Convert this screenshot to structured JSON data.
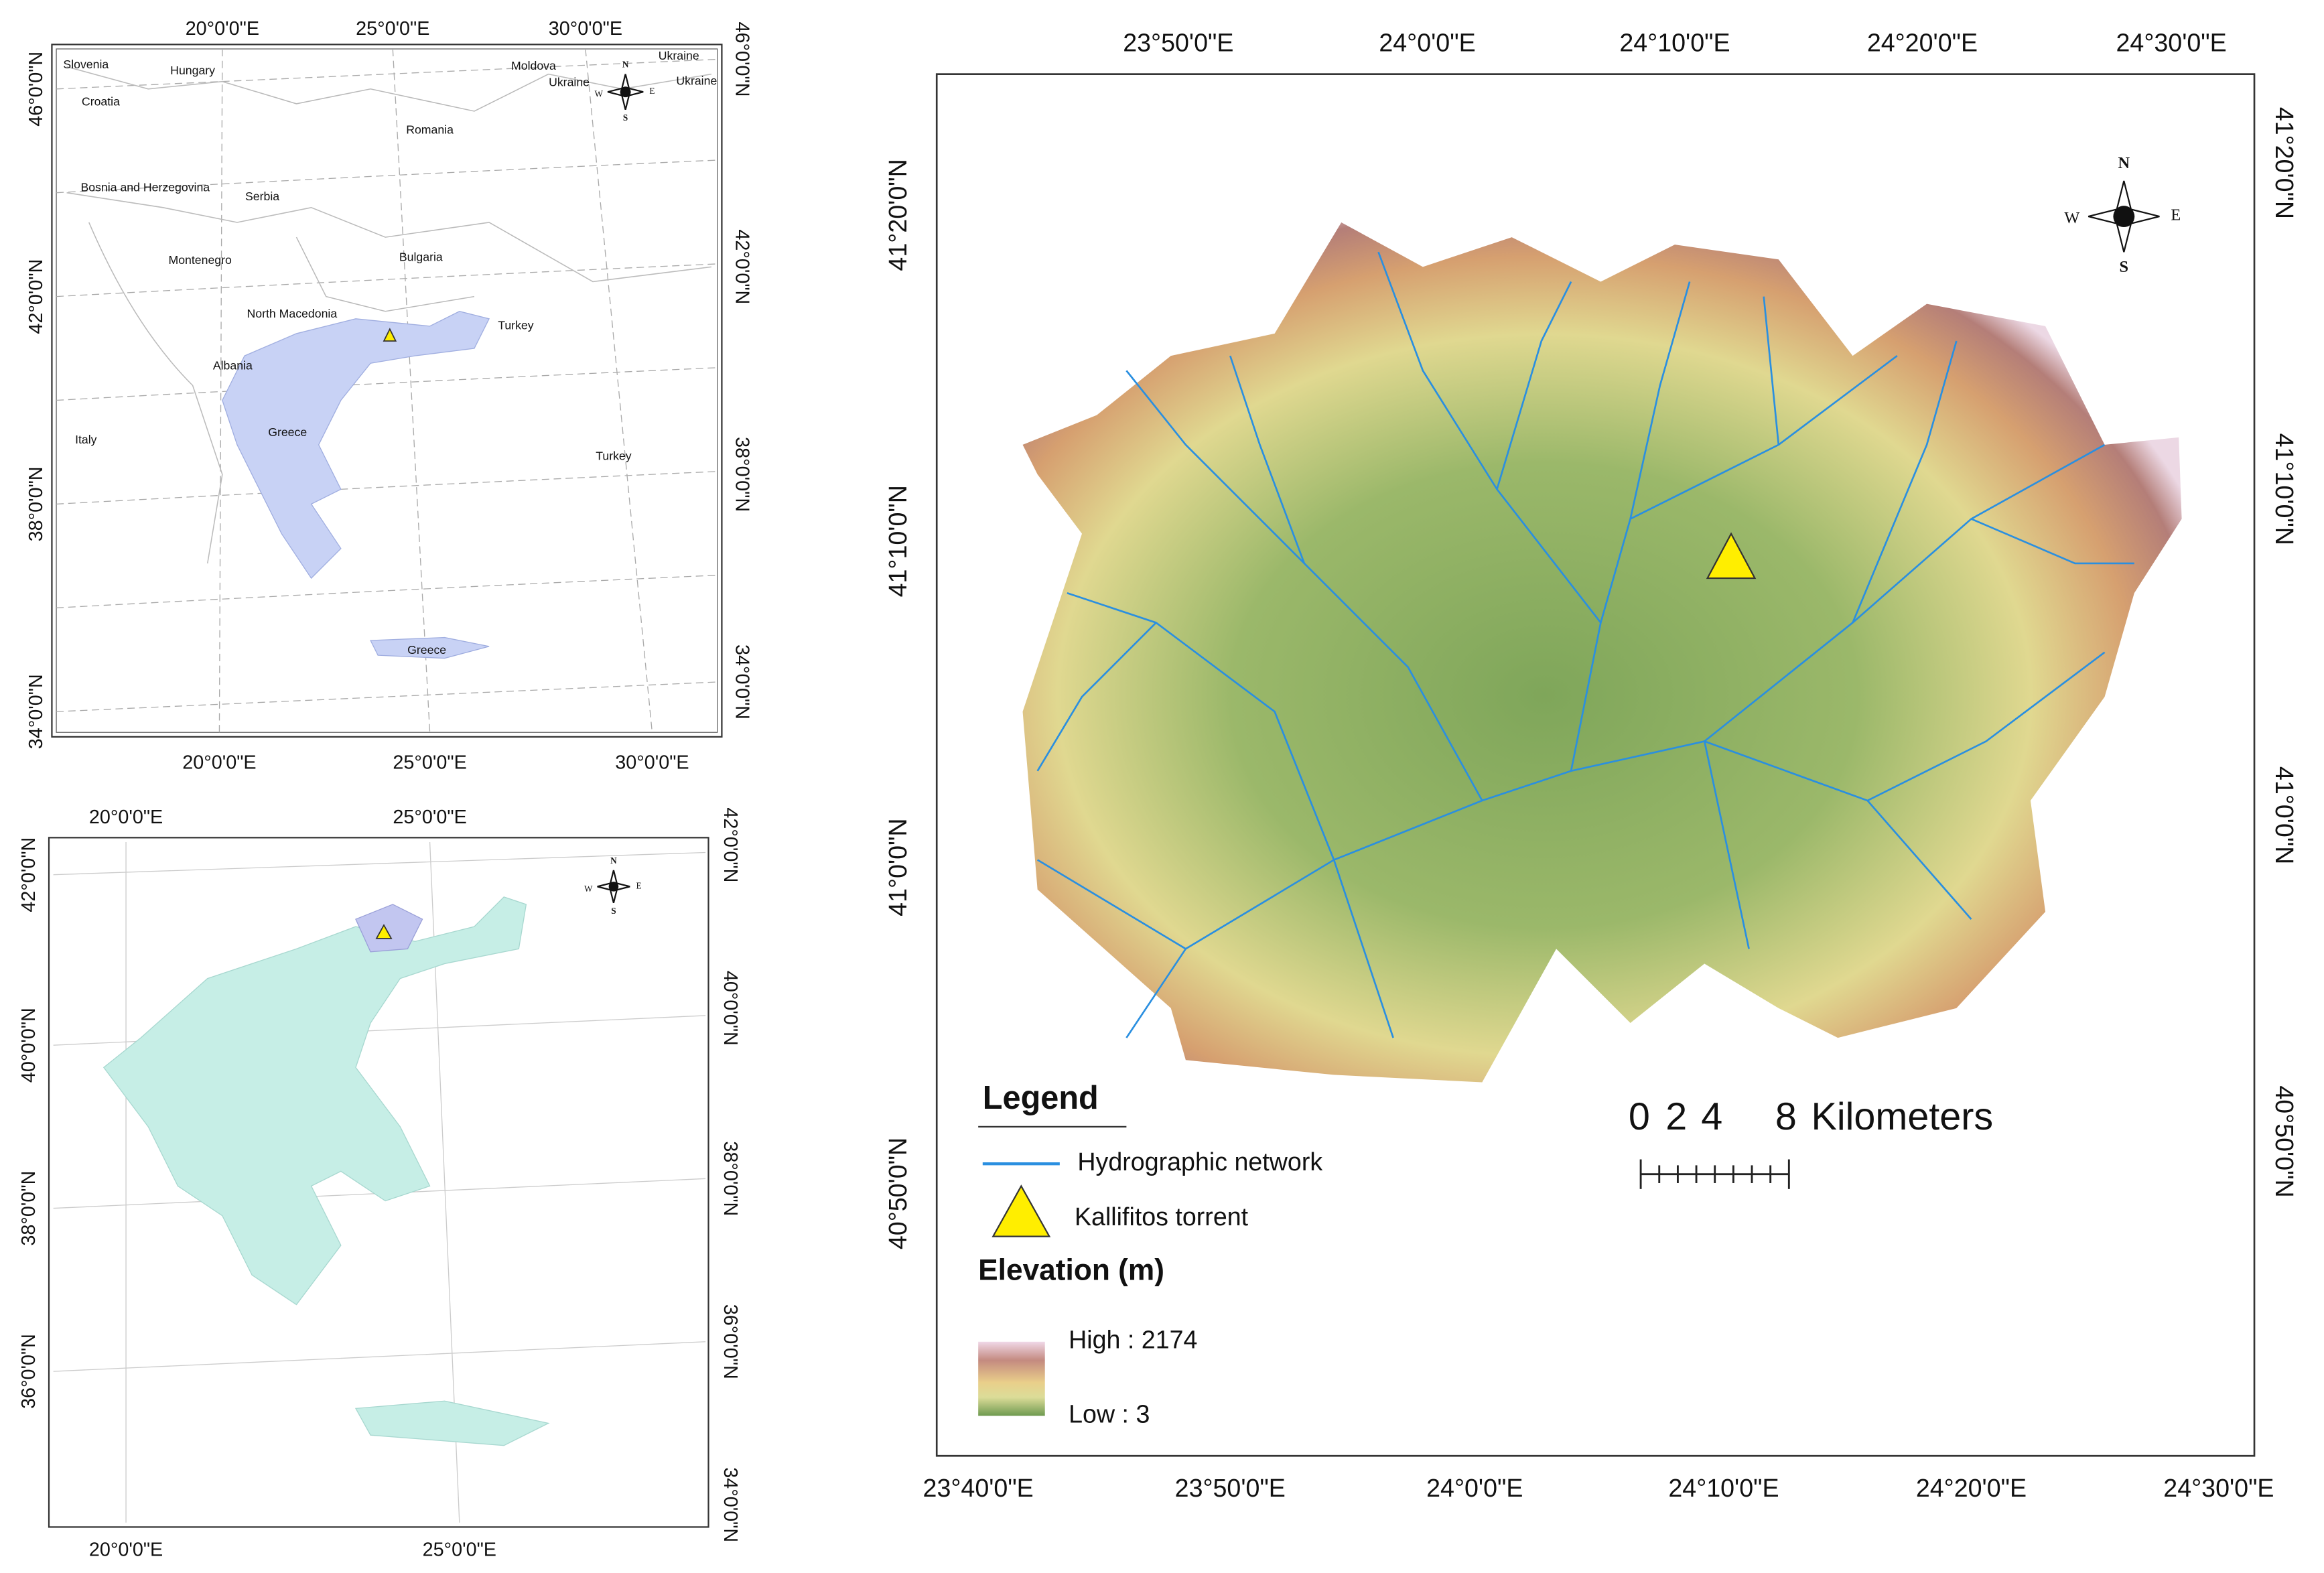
{
  "maps": [
    {
      "top_labels": [
        "20°0'0\"E",
        "25°0'0\"E",
        "30°0'0\"E"
      ],
      "bottom_labels": [
        "20°0'0\"E",
        "25°0'0\"E",
        "30°0'0\"E"
      ],
      "left_labels": [
        "46°0'0\"N",
        "42°0'0\"N",
        "38°0'0\"N",
        "34°0'0\"N"
      ],
      "right_labels": [
        "46°0'0\"N",
        "42°0'0\"N",
        "38°0'0\"N",
        "34°0'0\"N"
      ],
      "place_labels": [
        "Slovenia",
        "Hungary",
        "Moldova",
        "Ukraine",
        "Ukraine",
        "Ukraine",
        "Croatia",
        "Romania",
        "Bosnia and Herzegovina",
        "Serbia",
        "Montenegro",
        "Bulgaria",
        "North Macedonia",
        "Turkey",
        "Albania",
        "Greece",
        "Italy",
        "Turkey",
        "Greece"
      ],
      "compass": {
        "n": "N",
        "s": "S",
        "e": "E",
        "w": "W"
      }
    },
    {
      "top_labels": [
        "20°0'0\"E",
        "25°0'0\"E"
      ],
      "bottom_labels": [
        "20°0'0\"E",
        "25°0'0\"E"
      ],
      "left_labels": [
        "42°0'0\"N",
        "40°0'0\"N",
        "38°0'0\"N",
        "36°0'0\"N"
      ],
      "right_labels": [
        "42°0'0\"N",
        "40°0'0\"N",
        "38°0'0\"N",
        "36°0'0\"N",
        "34°0'0\"N"
      ],
      "compass": {
        "n": "N",
        "s": "S",
        "e": "E",
        "w": "W"
      }
    },
    {
      "top_labels": [
        "23°50'0\"E",
        "24°0'0\"E",
        "24°10'0\"E",
        "24°20'0\"E",
        "24°30'0\"E"
      ],
      "bottom_labels": [
        "23°40'0\"E",
        "23°50'0\"E",
        "24°0'0\"E",
        "24°10'0\"E",
        "24°20'0\"E",
        "24°30'0\"E"
      ],
      "left_labels": [
        "41°20'0\"N",
        "41°10'0\"N",
        "41°0'0\"N",
        "40°50'0\"N"
      ],
      "right_labels": [
        "41°20'0\"N",
        "41°10'0\"N",
        "41°0'0\"N",
        "40°50'0\"N"
      ],
      "compass": {
        "n": "N",
        "s": "S",
        "e": "E",
        "w": "W"
      }
    }
  ],
  "legend": {
    "title": "Legend",
    "hydro": "Hydrographic network",
    "torrent": "Kallifitos torrent",
    "elevation_title": "Elevation (m)",
    "high": "High : 2174",
    "low": "Low : 3"
  },
  "scale_bar": {
    "ticks": [
      "0",
      "2",
      "4",
      "8"
    ],
    "unit": "Kilometers"
  }
}
